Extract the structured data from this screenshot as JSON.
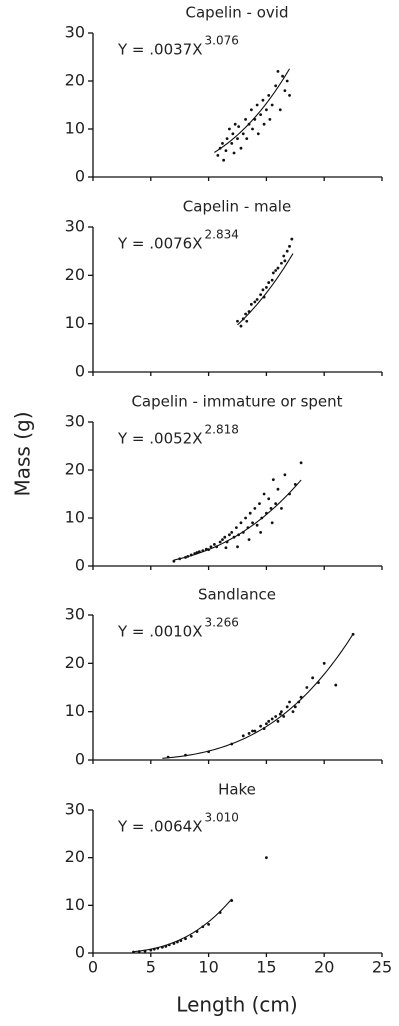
{
  "chart_data": [
    {
      "type": "scatter",
      "title": "Capelin - ovid",
      "equation": "Y = .0037X",
      "exponent": "3.076",
      "fit": {
        "a": 0.0037,
        "b": 3.076,
        "xrange": [
          10.5,
          17
        ]
      },
      "color": "#111",
      "x": [
        10.8,
        11,
        11.2,
        11.5,
        11.6,
        11.8,
        12,
        12.1,
        12.3,
        12.5,
        12.6,
        12.8,
        13,
        13.2,
        13.3,
        13.5,
        13.7,
        13.8,
        14,
        14.2,
        14.3,
        14.5,
        14.7,
        14.8,
        15,
        15.2,
        15.3,
        15.5,
        15.8,
        16,
        16.2,
        16.4,
        16.6,
        16.8,
        17,
        11.3,
        12.2
      ],
      "y": [
        4.5,
        6,
        7,
        5.5,
        8,
        10,
        7,
        9,
        11,
        8,
        10.5,
        6,
        9,
        12,
        8,
        11,
        14,
        10,
        12,
        15,
        9,
        13,
        16,
        11,
        14,
        17,
        12,
        15,
        19,
        22,
        14,
        21,
        18,
        20,
        17,
        3.5,
        5
      ],
      "xlim": [
        0,
        25
      ],
      "xticks": [
        0,
        5,
        10,
        15,
        20,
        25
      ],
      "ylim": [
        0,
        30
      ],
      "yticks": [
        0,
        10,
        20,
        30
      ]
    },
    {
      "type": "scatter",
      "title": "Capelin - male",
      "equation": "Y = .0076X",
      "exponent": "2.834",
      "fit": {
        "a": 0.0076,
        "b": 2.834,
        "xrange": [
          12.5,
          17.3
        ]
      },
      "color": "#111",
      "x": [
        12.5,
        12.8,
        13,
        13.2,
        13.5,
        13.7,
        14,
        14.2,
        14.5,
        14.7,
        15,
        15.2,
        15.5,
        15.8,
        16,
        16.3,
        16.5,
        16.8,
        17,
        17.2,
        13.3,
        14.8,
        15.6,
        16.6
      ],
      "y": [
        10.5,
        9.5,
        11,
        12,
        12.5,
        14,
        14.5,
        15,
        16,
        17,
        17.5,
        18.5,
        19,
        21,
        21.5,
        22.5,
        24,
        25,
        26,
        27.5,
        10.5,
        15.5,
        20.5,
        23
      ],
      "xlim": [
        0,
        25
      ],
      "xticks": [
        0,
        5,
        10,
        15,
        20,
        25
      ],
      "ylim": [
        0,
        30
      ],
      "yticks": [
        0,
        10,
        20,
        30
      ]
    },
    {
      "type": "scatter",
      "title": "Capelin - immature or spent",
      "equation": "Y = .0052X",
      "exponent": "2.818",
      "fit": {
        "a": 0.0052,
        "b": 2.818,
        "xrange": [
          7,
          18
        ]
      },
      "color": "#111",
      "y_label": "Mass (g)",
      "x": [
        7,
        7.5,
        8,
        8.2,
        8.5,
        8.8,
        9,
        9.2,
        9.5,
        9.8,
        10,
        10.2,
        10.5,
        10.7,
        11,
        11.2,
        11.4,
        11.6,
        11.8,
        12,
        12.2,
        12.4,
        12.6,
        12.8,
        13,
        13.2,
        13.4,
        13.6,
        13.8,
        14,
        14.2,
        14.4,
        14.6,
        14.8,
        15,
        15.2,
        15.4,
        15.6,
        15.8,
        16,
        16.3,
        16.6,
        17,
        17.5,
        18,
        12.5,
        13.5,
        14.5,
        15.5,
        11.5
      ],
      "y": [
        1,
        1.5,
        1.8,
        2,
        2.3,
        2.6,
        2.8,
        3,
        3.2,
        3.5,
        3.4,
        4,
        4.5,
        4,
        5,
        5.5,
        6,
        5,
        6.5,
        7,
        6,
        8,
        6.5,
        9,
        7,
        10,
        8,
        11,
        9,
        12,
        8.5,
        13,
        10,
        15,
        11,
        14,
        12,
        18,
        13,
        16,
        12,
        19,
        15,
        17,
        21.5,
        4,
        5.5,
        7,
        9,
        3.8
      ],
      "xlim": [
        0,
        25
      ],
      "xticks": [
        0,
        5,
        10,
        15,
        20,
        25
      ],
      "ylim": [
        0,
        30
      ],
      "yticks": [
        0,
        10,
        20,
        30
      ]
    },
    {
      "type": "scatter",
      "title": "Sandlance",
      "equation": "Y = .0010X",
      "exponent": "3.266",
      "fit": {
        "a": 0.001,
        "b": 3.266,
        "xrange": [
          6,
          22.5
        ]
      },
      "color": "#111",
      "x": [
        6.5,
        8,
        10,
        12,
        13,
        13.5,
        14,
        14.5,
        15,
        15.2,
        15.5,
        15.8,
        16,
        16.3,
        16.5,
        16.8,
        17,
        17.3,
        17.5,
        18,
        18.5,
        19,
        19.5,
        20,
        21,
        22.5,
        14.8,
        16.2,
        17.8,
        13.8
      ],
      "y": [
        0.6,
        1,
        1.7,
        3.3,
        5,
        5.5,
        6,
        7,
        7.5,
        8,
        8.5,
        9,
        8,
        10,
        9,
        11,
        12,
        10,
        11,
        13,
        15,
        17,
        16,
        20,
        15.5,
        26,
        6.5,
        9.5,
        12,
        6
      ],
      "xlim": [
        0,
        25
      ],
      "xticks": [
        0,
        5,
        10,
        15,
        20,
        25
      ],
      "ylim": [
        0,
        30
      ],
      "yticks": [
        0,
        10,
        20,
        30
      ]
    },
    {
      "type": "scatter",
      "title": "Hake",
      "equation": "Y = .0064X",
      "exponent": "3.010",
      "fit": {
        "a": 0.0064,
        "b": 3.01,
        "xrange": [
          3.5,
          12
        ]
      },
      "color": "#111",
      "x_label": "Length (cm)",
      "x": [
        3.5,
        4,
        4.5,
        5,
        5.3,
        5.6,
        6,
        6.3,
        6.6,
        7,
        7.3,
        7.6,
        8,
        8.5,
        9,
        9.5,
        10,
        11,
        12,
        15
      ],
      "y": [
        0.2,
        0.3,
        0.4,
        0.6,
        0.8,
        1,
        1.2,
        1.4,
        1.7,
        2,
        2.3,
        2.6,
        3,
        3.5,
        4.5,
        5.5,
        6,
        8.5,
        11,
        20
      ],
      "xlim": [
        0,
        25
      ],
      "xticks": [
        0,
        5,
        10,
        15,
        20,
        25
      ],
      "ylim": [
        0,
        30
      ],
      "yticks": [
        0,
        10,
        20,
        30
      ]
    }
  ]
}
